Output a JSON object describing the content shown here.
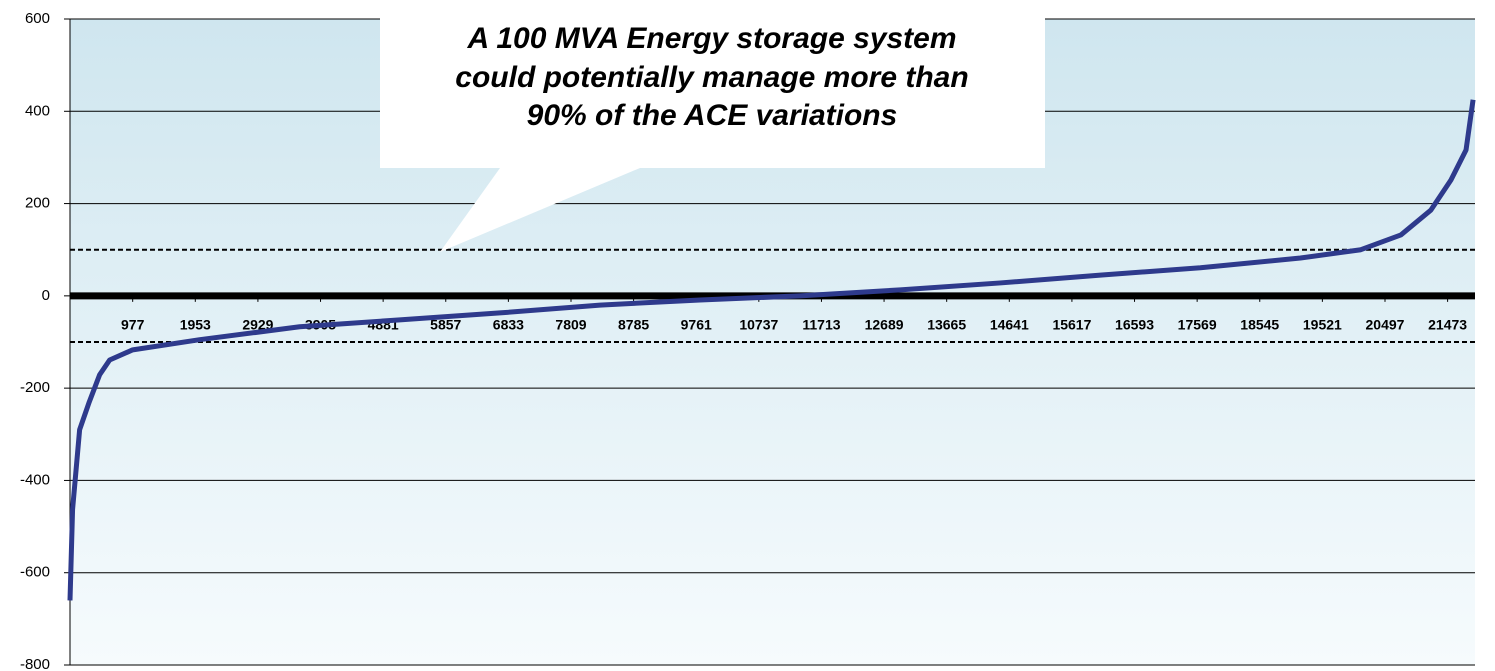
{
  "chart_data": {
    "type": "line",
    "annotation": [
      "A 100 MVA Energy storage system",
      "could potentially manage more than",
      "90% of the ACE variations"
    ],
    "x": [
      0,
      40,
      150,
      300,
      462,
      618,
      977,
      2020,
      3580,
      5140,
      6700,
      8260,
      9820,
      11380,
      12940,
      14500,
      16060,
      17620,
      19180,
      20120,
      20745,
      21213,
      21525,
      21760,
      21870
    ],
    "series": [
      {
        "name": "ACE",
        "color": "#2e3a8c",
        "values": [
          -660,
          -463,
          -290,
          -230,
          -171,
          -139,
          -117,
          -95,
          -67,
          -52,
          -37,
          -20,
          -9,
          0,
          13,
          28,
          45,
          61,
          82,
          100,
          132,
          186,
          251,
          316,
          425
        ]
      }
    ],
    "xlim": [
      0,
      21900
    ],
    "xticks": [
      977,
      1953,
      2929,
      3905,
      4881,
      5857,
      6833,
      7809,
      8785,
      9761,
      10737,
      11713,
      12689,
      13665,
      14641,
      15617,
      16593,
      17569,
      18545,
      19521,
      20497,
      21473
    ],
    "ylim": [
      -800,
      600
    ],
    "yticks": [
      -800,
      -600,
      -400,
      -200,
      0,
      200,
      400,
      600
    ],
    "reference_lines": [
      100,
      -100
    ],
    "grid": true
  }
}
